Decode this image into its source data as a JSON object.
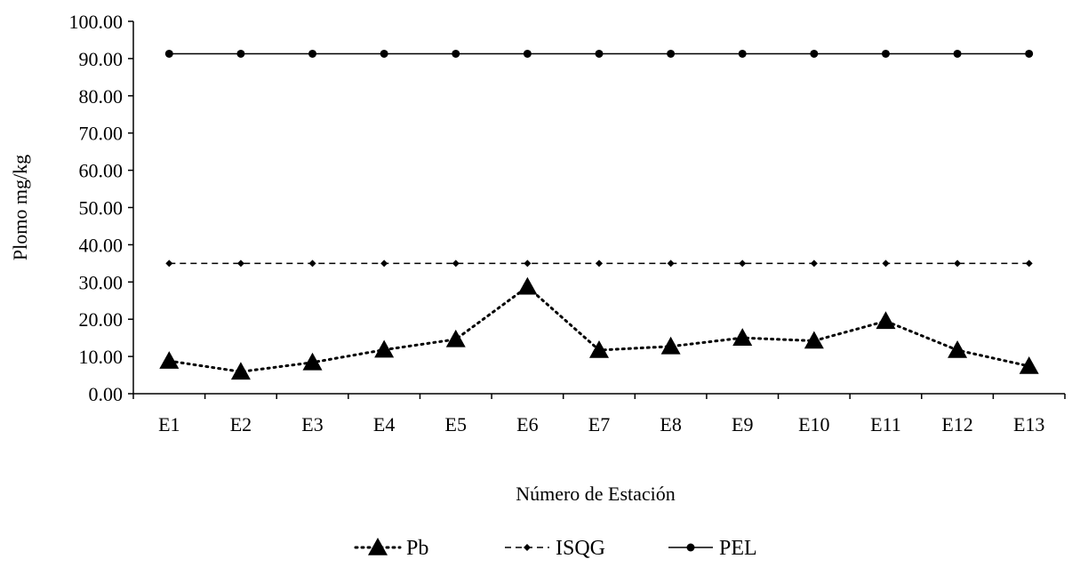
{
  "chart_data": {
    "type": "line",
    "title": "",
    "xlabel": "Número de Estación",
    "ylabel": "Plomo mg/kg",
    "categories": [
      "E1",
      "E2",
      "E3",
      "E4",
      "E5",
      "E6",
      "E7",
      "E8",
      "E9",
      "E10",
      "E11",
      "E12",
      "E13"
    ],
    "ylim": [
      0,
      100
    ],
    "yticks": [
      "0.00",
      "10.00",
      "20.00",
      "30.00",
      "40.00",
      "50.00",
      "60.00",
      "70.00",
      "80.00",
      "90.00",
      "100.00"
    ],
    "grid": false,
    "legend_position": "bottom",
    "series": [
      {
        "name": "Pb",
        "line_style": "dotted",
        "marker": "triangle",
        "values": [
          8.8,
          5.9,
          8.4,
          11.8,
          14.6,
          28.7,
          11.7,
          12.7,
          15.0,
          14.2,
          19.5,
          11.7,
          7.4
        ]
      },
      {
        "name": "ISQG",
        "line_style": "dashed",
        "marker": "diamond",
        "values": [
          35.0,
          35.0,
          35.0,
          35.0,
          35.0,
          35.0,
          35.0,
          35.0,
          35.0,
          35.0,
          35.0,
          35.0,
          35.0
        ]
      },
      {
        "name": "PEL",
        "line_style": "solid",
        "marker": "circle",
        "values": [
          91.3,
          91.3,
          91.3,
          91.3,
          91.3,
          91.3,
          91.3,
          91.3,
          91.3,
          91.3,
          91.3,
          91.3,
          91.3
        ]
      }
    ],
    "colors": {
      "line": "#000000",
      "background": "#ffffff"
    }
  }
}
